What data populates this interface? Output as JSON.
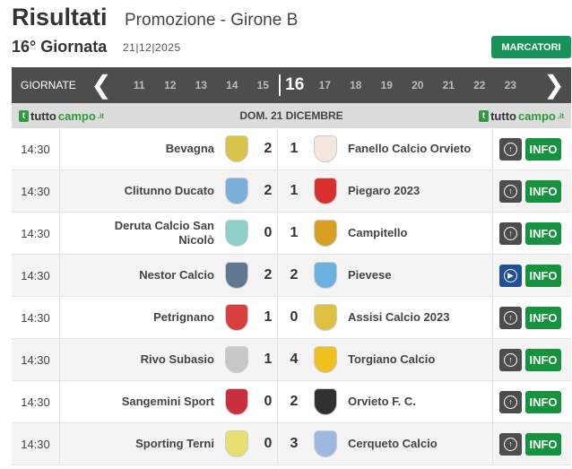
{
  "header": {
    "title": "Risultati",
    "subtitle": "Promozione - Girone B",
    "giornata": "16° Giornata",
    "date": "21|12|2025",
    "marcatori": "MARCATORI"
  },
  "nav": {
    "label": "GIORNATE",
    "prev": "❮",
    "next": "❯",
    "rounds": [
      "11",
      "12",
      "13",
      "14",
      "15",
      "16",
      "17",
      "18",
      "19",
      "20",
      "21",
      "22",
      "23"
    ],
    "current": "16"
  },
  "subheader": {
    "logo_a": "tutto",
    "logo_b": "campo",
    "logo_c": ".it",
    "day": "DOM. 21 DICEMBRE"
  },
  "colors": {
    "accent": "#17935a",
    "info": "#17933f",
    "nav": "#4d4d4d",
    "live": "#1f4f9a"
  },
  "matches": [
    {
      "time": "14:30",
      "home": "Bevagna",
      "hs": "2",
      "as": "1",
      "away": "Fanello Calcio Orvieto",
      "icon": "arrow-up-icon",
      "hc": "#d8c24a",
      "ac": "#f5e6e0"
    },
    {
      "time": "14:30",
      "home": "Clitunno Ducato",
      "hs": "2",
      "as": "1",
      "away": "Piegaro 2023",
      "icon": "arrow-up-icon",
      "hc": "#7ab0d8",
      "ac": "#d83030"
    },
    {
      "time": "14:30",
      "home": "Deruta Calcio San Nicolò",
      "hs": "0",
      "as": "1",
      "away": "Campitello",
      "icon": "arrow-up-icon",
      "hc": "#8fd0c8",
      "ac": "#d8a020"
    },
    {
      "time": "14:30",
      "home": "Nestor Calcio",
      "hs": "2",
      "as": "2",
      "away": "Pievese",
      "icon": "play-icon",
      "hc": "#607890",
      "ac": "#6ab0e0"
    },
    {
      "time": "14:30",
      "home": "Petrignano",
      "hs": "1",
      "as": "0",
      "away": "Assisi Calcio 2023",
      "icon": "arrow-up-icon",
      "hc": "#d84040",
      "ac": "#e0c040"
    },
    {
      "time": "14:30",
      "home": "Rivo Subasio",
      "hs": "1",
      "as": "4",
      "away": "Torgiano Calcio",
      "icon": "arrow-up-icon",
      "hc": "#c8c8c8",
      "ac": "#f0c020"
    },
    {
      "time": "14:30",
      "home": "Sangemini Sport",
      "hs": "0",
      "as": "2",
      "away": "Orvieto F. C.",
      "icon": "arrow-up-icon",
      "hc": "#c83040",
      "ac": "#303030"
    },
    {
      "time": "14:30",
      "home": "Sporting Terni",
      "hs": "0",
      "as": "3",
      "away": "Cerqueto Calcio",
      "icon": "arrow-up-icon",
      "hc": "#e8e070",
      "ac": "#a0b8e0"
    }
  ],
  "info_label": "INFO"
}
